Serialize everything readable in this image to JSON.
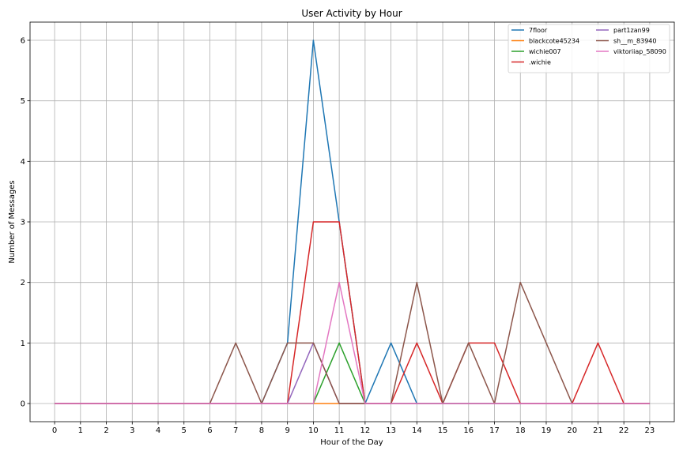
{
  "chart_data": {
    "type": "line",
    "title": "User Activity by Hour",
    "xlabel": "Hour of the Day",
    "ylabel": "Number of Messages",
    "x": [
      0,
      1,
      2,
      3,
      4,
      5,
      6,
      7,
      8,
      9,
      10,
      11,
      12,
      13,
      14,
      15,
      16,
      17,
      18,
      19,
      20,
      21,
      22,
      23
    ],
    "xlim": [
      -0.95,
      23.95
    ],
    "ylim": [
      -0.3,
      6.3
    ],
    "xticks": [
      "0",
      "1",
      "2",
      "3",
      "4",
      "5",
      "6",
      "7",
      "8",
      "9",
      "10",
      "11",
      "12",
      "13",
      "14",
      "15",
      "16",
      "17",
      "18",
      "19",
      "20",
      "21",
      "22",
      "23"
    ],
    "yticks": [
      "0",
      "1",
      "2",
      "3",
      "4",
      "5",
      "6"
    ],
    "grid": true,
    "legend_position": "top-right",
    "legend_columns": 2,
    "series": [
      {
        "name": "7floor",
        "color": "#1f77b4",
        "values": [
          0,
          0,
          0,
          0,
          0,
          0,
          0,
          0,
          0,
          1,
          6,
          3,
          0,
          1,
          0,
          0,
          0,
          0,
          0,
          0,
          0,
          0,
          0,
          0
        ]
      },
      {
        "name": "blackcote45234",
        "color": "#ff7f0e",
        "values": [
          0,
          0,
          0,
          0,
          0,
          0,
          0,
          0,
          0,
          0,
          0,
          0,
          0,
          0,
          0,
          0,
          0,
          0,
          0,
          0,
          0,
          0,
          0,
          0
        ]
      },
      {
        "name": "wichie007",
        "color": "#2ca02c",
        "values": [
          0,
          0,
          0,
          0,
          0,
          0,
          0,
          0,
          0,
          0,
          0,
          1,
          0,
          0,
          0,
          0,
          0,
          0,
          0,
          0,
          0,
          0,
          0,
          0
        ]
      },
      {
        "name": ".wichie",
        "color": "#d62728",
        "values": [
          0,
          0,
          0,
          0,
          0,
          0,
          0,
          0,
          0,
          0,
          3,
          3,
          0,
          0,
          1,
          0,
          1,
          1,
          0,
          0,
          0,
          1,
          0,
          0
        ]
      },
      {
        "name": "part1zan99",
        "color": "#9467bd",
        "values": [
          0,
          0,
          0,
          0,
          0,
          0,
          0,
          0,
          0,
          0,
          1,
          0,
          0,
          0,
          0,
          0,
          0,
          0,
          0,
          0,
          0,
          0,
          0,
          0
        ]
      },
      {
        "name": "sh__m_83940",
        "color": "#8c564b",
        "values": [
          0,
          0,
          0,
          0,
          0,
          0,
          0,
          1,
          0,
          1,
          1,
          0,
          0,
          0,
          2,
          0,
          1,
          0,
          2,
          1,
          0,
          0,
          0,
          0
        ]
      },
      {
        "name": "viktoriiap_58090",
        "color": "#e377c2",
        "values": [
          0,
          0,
          0,
          0,
          0,
          0,
          0,
          0,
          0,
          0,
          0,
          2,
          0,
          0,
          0,
          0,
          0,
          0,
          0,
          0,
          0,
          0,
          0,
          0
        ]
      }
    ]
  }
}
